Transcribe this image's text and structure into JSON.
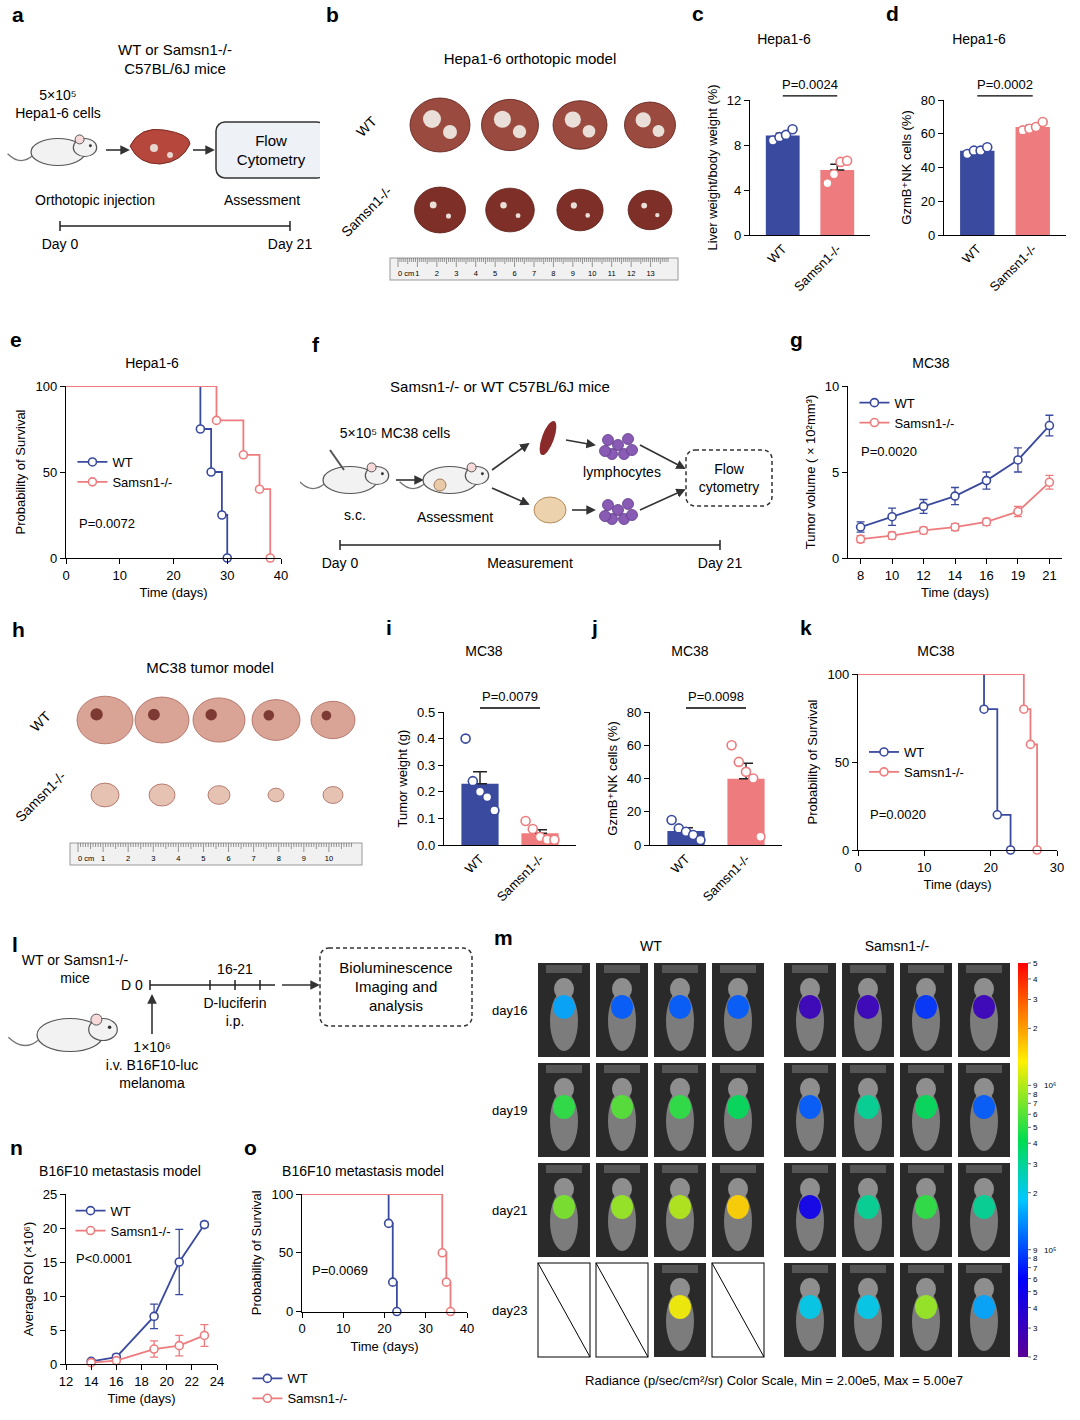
{
  "chart_data": [
    {
      "panel_label": "c",
      "type": "bar",
      "title": "Hepa1-6",
      "y_label": "Liver weight/body weight (%)",
      "categories": [
        "WT",
        "Samsn1-/-"
      ],
      "colors": [
        "#3a4a9e",
        "#ee7b7d"
      ],
      "values": [
        8.85,
        5.78
      ],
      "errors": [
        0.2,
        0.5
      ],
      "points": [
        [
          8.4,
          8.7,
          8.9,
          9.4
        ],
        [
          4.6,
          5.4,
          6.5,
          6.6
        ]
      ],
      "ylim": [
        0,
        12
      ],
      "yticks": [
        0,
        4,
        8,
        12
      ],
      "annotation": "P=0.0024"
    },
    {
      "panel_label": "d",
      "type": "bar",
      "title": "Hepa1-6",
      "y_label": "GzmB⁺NK cells (%)",
      "categories": [
        "WT",
        "Samsn1-/-"
      ],
      "colors": [
        "#3a4a9e",
        "#ee7b7d"
      ],
      "values": [
        50,
        64
      ],
      "errors": [
        0.8,
        1.1
      ],
      "points": [
        [
          48,
          50,
          50,
          52
        ],
        [
          62,
          63,
          64,
          67
        ]
      ],
      "ylim": [
        0,
        80
      ],
      "yticks": [
        0,
        20,
        40,
        60,
        80
      ],
      "annotation": "P=0.0002"
    },
    {
      "panel_label": "e",
      "type": "step",
      "title": "Hepa1-6",
      "x_label": "Time (days)",
      "y_label": "Probability of Survival",
      "series": [
        {
          "name": "WT",
          "color": "#3a4a9e",
          "x": [
            0,
            25,
            27,
            29,
            30
          ],
          "values": [
            100,
            75,
            50,
            25,
            0
          ]
        },
        {
          "name": "Samsn1-/-",
          "color": "#ee7b7d",
          "x": [
            0,
            28,
            33,
            36,
            38
          ],
          "values": [
            100,
            80,
            60,
            40,
            0
          ]
        }
      ],
      "xlim": [
        0,
        40
      ],
      "xticks": [
        0,
        10,
        20,
        30,
        40
      ],
      "ylim": [
        0,
        100
      ],
      "yticks": [
        0,
        50,
        100
      ],
      "legend": "left",
      "marker": "open circle",
      "annotation": "P=0.0072"
    },
    {
      "panel_label": "g",
      "type": "line",
      "title": "MC38",
      "x_label": "Time (days)",
      "y_label": "Tumor volume ( × 10²mm³)",
      "categories": [
        "8",
        "10",
        "12",
        "14",
        "16",
        "19",
        "21"
      ],
      "series": [
        {
          "name": "WT",
          "color": "#3a4a9e",
          "values": [
            1.8,
            2.4,
            3.0,
            3.6,
            4.5,
            5.7,
            7.7
          ],
          "errors": [
            0.3,
            0.5,
            0.4,
            0.5,
            0.5,
            0.7,
            0.6
          ]
        },
        {
          "name": "Samsn1-/-",
          "color": "#ee7b7d",
          "values": [
            1.1,
            1.3,
            1.6,
            1.8,
            2.1,
            2.7,
            4.4
          ],
          "errors": [
            0.2,
            0.2,
            0.2,
            0.2,
            0.2,
            0.3,
            0.4
          ]
        }
      ],
      "ylim": [
        0,
        10
      ],
      "yticks": [
        0,
        5,
        10
      ],
      "legend": "top left",
      "marker": "open circle",
      "annotation": "P=0.0020"
    },
    {
      "panel_label": "i",
      "type": "bar",
      "title": "MC38",
      "y_label": "Tumor weight (g)",
      "categories": [
        "WT",
        "Samsn1-/-"
      ],
      "colors": [
        "#3a4a9e",
        "#ee7b7d"
      ],
      "values": [
        0.23,
        0.044
      ],
      "errors": [
        0.045,
        0.013
      ],
      "points": [
        [
          0.4,
          0.24,
          0.2,
          0.18,
          0.13
        ],
        [
          0.09,
          0.06,
          0.03,
          0.02,
          0.02
        ]
      ],
      "ylim": [
        0,
        0.5
      ],
      "yticks": [
        {
          "value": 0,
          "label": "0.0"
        },
        0.1,
        0.2,
        0.3,
        0.4,
        0.5
      ],
      "annotation": "P=0.0079"
    },
    {
      "panel_label": "j",
      "type": "bar",
      "title": "MC38",
      "y_label": "GzmB⁺NK cells (%)",
      "categories": [
        "WT",
        "Samsn1-/-"
      ],
      "colors": [
        "#3a4a9e",
        "#ee7b7d"
      ],
      "values": [
        8.4,
        39.8
      ],
      "errors": [
        2.0,
        9.3
      ],
      "points": [
        [
          15,
          10,
          8,
          6,
          3
        ],
        [
          60,
          50,
          44,
          40,
          5
        ]
      ],
      "ylim": [
        0,
        80
      ],
      "yticks": [
        0,
        20,
        40,
        60,
        80
      ],
      "annotation": "P=0.0098"
    },
    {
      "panel_label": "k",
      "type": "step",
      "title": "MC38",
      "x_label": "Time (days)",
      "y_label": "Probability of Survival",
      "series": [
        {
          "name": "WT",
          "color": "#3a4a9e",
          "x": [
            0,
            19,
            21,
            23
          ],
          "values": [
            100,
            80,
            20,
            0
          ]
        },
        {
          "name": "Samsn1-/-",
          "color": "#ee7b7d",
          "x": [
            0,
            25,
            26,
            27
          ],
          "values": [
            100,
            80,
            60,
            0
          ]
        }
      ],
      "xlim": [
        0,
        30
      ],
      "xticks": [
        0,
        10,
        20,
        30
      ],
      "ylim": [
        0,
        100
      ],
      "yticks": [
        0,
        50,
        100
      ],
      "legend": "left",
      "marker": "open circle",
      "annotation": "P=0.0020"
    },
    {
      "panel_label": "n",
      "type": "line",
      "title": "B16F10 metastasis model",
      "x_label": "Time (days)",
      "y_label": "Average ROI (×10⁶)",
      "x": [
        14,
        16,
        19,
        21,
        23
      ],
      "series": [
        {
          "name": "WT",
          "color": "#3a4a9e",
          "values": [
            0.4,
            1.0,
            7.0,
            15.0,
            20.5
          ],
          "errors": [
            0.2,
            0.4,
            1.8,
            4.8,
            0.4
          ]
        },
        {
          "name": "Samsn1-/-",
          "color": "#ee7b7d",
          "values": [
            0.2,
            0.5,
            2.2,
            2.7,
            4.2
          ],
          "errors": [
            0.1,
            0.2,
            1.2,
            1.5,
            1.6
          ]
        }
      ],
      "xlim": [
        12,
        24
      ],
      "xticks": [
        12,
        14,
        16,
        18,
        20,
        22,
        24
      ],
      "ylim": [
        0,
        25
      ],
      "yticks": [
        0,
        5,
        10,
        15,
        20,
        25
      ],
      "legend": "top left",
      "marker": "open circle",
      "annotation": "P<0.0001"
    },
    {
      "panel_label": "o",
      "type": "step",
      "title": "B16F10 metastasis model",
      "x_label": "Time (days)",
      "y_label": "Probability of Survival",
      "series": [
        {
          "name": "WT",
          "color": "#3a4a9e",
          "x": [
            0,
            21,
            22,
            23
          ],
          "values": [
            100,
            75,
            25,
            0
          ]
        },
        {
          "name": "Samsn1-/-",
          "color": "#ee7b7d",
          "x": [
            0,
            34,
            35,
            36
          ],
          "values": [
            100,
            50,
            25,
            0
          ]
        }
      ],
      "xlim": [
        0,
        40
      ],
      "xticks": [
        0,
        10,
        20,
        30,
        40
      ],
      "ylim": [
        0,
        100
      ],
      "yticks": [
        0,
        50,
        100
      ],
      "legend": "bottom",
      "marker": "open circle",
      "annotation": "P=0.0069"
    }
  ],
  "schematics": [
    {
      "panel_label": "a",
      "mice_lines": [
        "WT or Samsn1-/-",
        "C57BL/6J mice"
      ],
      "cell_lines": [
        "5×10⁵",
        "Hepa1-6 cells"
      ],
      "box_lines": [
        "Flow",
        "Cytometry"
      ],
      "route": "Orthotopic injection",
      "assessment": "Assessment",
      "start": "Day 0",
      "end": "Day 21"
    },
    {
      "panel_label": "f",
      "title": "Samsn1-/- or WT C57BL/6J mice",
      "cells": "5×10⁵ MC38 cells",
      "route": "s.c.",
      "assessment": "Assessment",
      "lymph": "lymphocytes",
      "box_lines": [
        "Flow",
        "cytometry"
      ],
      "start": "Day 0",
      "middle": "Measurement",
      "end": "Day 21"
    },
    {
      "panel_label": "l",
      "mice_lines": [
        "WT or Samsn1-/-",
        "mice"
      ],
      "start": "D 0",
      "window": "16-21",
      "reagent_lines": [
        "D-luciferin",
        "i.p."
      ],
      "injection_lines": [
        "1×10⁶",
        "i.v. B16F10-luc",
        "melanoma"
      ],
      "box_lines": [
        "Bioluminescence",
        "Imaging and",
        "analysis"
      ]
    }
  ],
  "photos": [
    {
      "panel_label": "b",
      "title": "Hepa1-6 orthotopic model",
      "rows": [
        "WT",
        "Samsn1-/-"
      ],
      "ruler_labels": [
        "0 cm",
        "1",
        "2",
        "3",
        "4",
        "5",
        "6",
        "7",
        "8",
        "9",
        "10",
        "11",
        "12",
        "13"
      ]
    },
    {
      "panel_label": "h",
      "title": "MC38 tumor model",
      "rows": [
        "WT",
        "Samsn1-/-"
      ],
      "ruler_labels": [
        "0 cm",
        "1",
        "2",
        "3",
        "4",
        "5",
        "6",
        "7",
        "8",
        "9",
        "10"
      ]
    }
  ],
  "imaging": {
    "panel_label": "m",
    "groups": [
      "WT",
      "Samsn1-/-"
    ],
    "days": [
      "day16",
      "day19",
      "day21",
      "day23"
    ],
    "radiance": [
      [
        [
          1500000,
          1000000,
          1000000,
          1000000
        ],
        [
          5000000,
          6000000,
          5000000,
          4000000
        ],
        [
          7000000,
          8000000,
          9000000,
          15000000
        ],
        [
          null,
          null,
          12000000,
          null
        ]
      ],
      [
        [
          300000,
          300000,
          800000,
          300000
        ],
        [
          1000000,
          3000000,
          4000000,
          1000000
        ],
        [
          500000,
          3000000,
          5000000,
          3000000
        ],
        [
          2000000,
          2000000,
          8000000,
          1500000
        ]
      ]
    ],
    "caption": "Radiance (p/sec/cm²/sr) Color Scale, Min = 2.00e5, Max = 5.00e7",
    "colorbar": {
      "min": 200000,
      "max": 50000000,
      "ticks": [
        {
          "value": 50000000,
          "label": "5"
        },
        {
          "value": 40000000,
          "label": "4"
        },
        {
          "value": 30000000,
          "label": "3"
        },
        {
          "value": 20000000,
          "label": "2"
        },
        {
          "value": 9000000,
          "label": "9"
        },
        {
          "value": 8000000,
          "label": "8"
        },
        {
          "value": 7000000,
          "label": "7"
        },
        {
          "value": 6000000,
          "label": "6"
        },
        {
          "value": 5000000,
          "label": "5"
        },
        {
          "value": 4000000,
          "label": "4"
        },
        {
          "value": 3000000,
          "label": "3"
        },
        {
          "value": 2000000,
          "label": "2"
        },
        {
          "value": 900000,
          "label": "9"
        },
        {
          "value": 800000,
          "label": "8"
        },
        {
          "value": 700000,
          "label": "7"
        },
        {
          "value": 600000,
          "label": "6"
        },
        {
          "value": 500000,
          "label": "5"
        },
        {
          "value": 400000,
          "label": "4"
        },
        {
          "value": 300000,
          "label": "3"
        },
        {
          "value": 200000,
          "label": "2"
        }
      ],
      "decade_labels": [
        {
          "value": 9000000,
          "label": "10⁶"
        },
        {
          "value": 900000,
          "label": "10⁵"
        }
      ]
    }
  }
}
